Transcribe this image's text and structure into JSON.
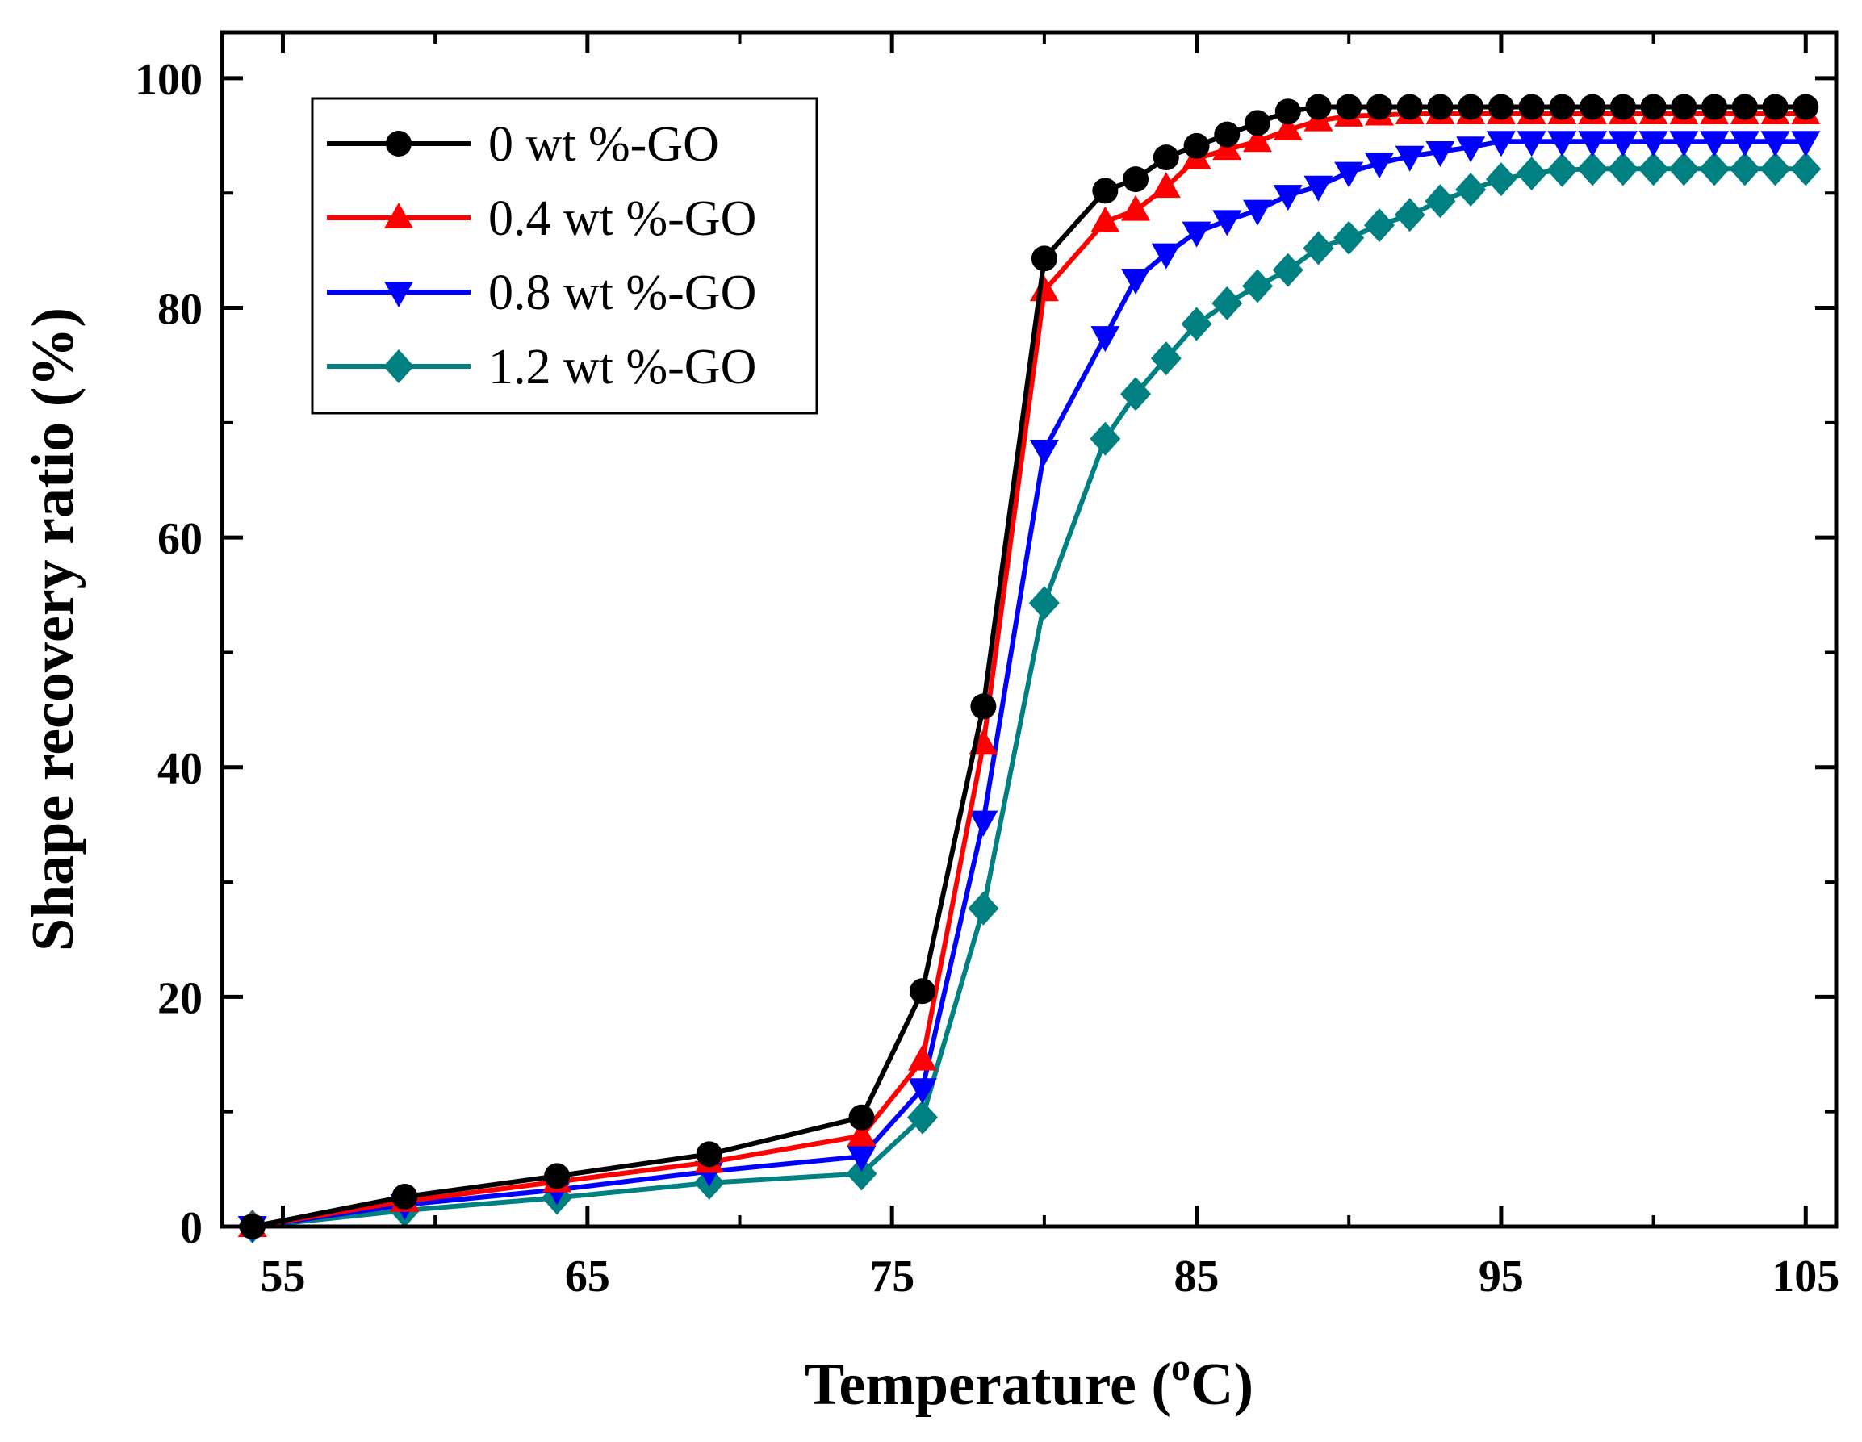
{
  "chart_data": {
    "type": "line",
    "title": "",
    "xlabel": "Temperature (",
    "xlabel_sup": "o",
    "xlabel_end": "C)",
    "ylabel": "Shape recovery ratio (%)",
    "xlim": [
      53,
      106
    ],
    "ylim": [
      0,
      104
    ],
    "xticks": [
      55,
      65,
      75,
      85,
      95,
      105
    ],
    "xtick_labels": [
      "55",
      "65",
      "75",
      "85",
      "95",
      "105"
    ],
    "yticks": [
      0,
      20,
      40,
      60,
      80,
      100
    ],
    "ytick_labels": [
      "0",
      "20",
      "40",
      "60",
      "80",
      "100"
    ],
    "legend_position": "top-left",
    "series": [
      {
        "name": "0 wt %-GO",
        "color": "#000000",
        "marker": "circle",
        "x": [
          54,
          59,
          64,
          69,
          74,
          76,
          78,
          80,
          82,
          83,
          84,
          85,
          86,
          87,
          88,
          89,
          90,
          91,
          92,
          93,
          94,
          95,
          96,
          97,
          98,
          99,
          100,
          101,
          102,
          103,
          104,
          105
        ],
        "y": [
          0,
          2.6,
          4.4,
          6.3,
          9.5,
          20.5,
          45.3,
          84.3,
          90.2,
          91.2,
          93.1,
          94.1,
          95.1,
          96.1,
          97.1,
          97.5,
          97.5,
          97.5,
          97.5,
          97.5,
          97.5,
          97.5,
          97.5,
          97.5,
          97.5,
          97.5,
          97.5,
          97.5,
          97.5,
          97.5,
          97.5,
          97.5
        ]
      },
      {
        "name": "0.4 wt %-GO",
        "color": "#ff0000",
        "marker": "triangle-up",
        "x": [
          54,
          59,
          64,
          69,
          74,
          76,
          78,
          80,
          82,
          83,
          84,
          85,
          86,
          87,
          88,
          89,
          90,
          91,
          92,
          93,
          94,
          95,
          96,
          97,
          98,
          99,
          100,
          101,
          102,
          103,
          104,
          105
        ],
        "y": [
          0,
          2.2,
          3.9,
          5.6,
          7.9,
          14.5,
          42,
          81.5,
          87.5,
          88.5,
          90.5,
          93,
          93.8,
          94.5,
          95.5,
          96.3,
          96.7,
          96.8,
          96.9,
          96.9,
          96.9,
          96.9,
          96.9,
          96.9,
          96.9,
          96.9,
          96.9,
          96.9,
          96.9,
          96.9,
          96.9,
          96.9
        ]
      },
      {
        "name": "0.8 wt %-GO",
        "color": "#0000ff",
        "marker": "triangle-down",
        "x": [
          54,
          59,
          64,
          69,
          74,
          76,
          78,
          80,
          82,
          83,
          84,
          85,
          86,
          87,
          88,
          89,
          90,
          91,
          92,
          93,
          94,
          95,
          96,
          97,
          98,
          99,
          100,
          101,
          102,
          103,
          104,
          105
        ],
        "y": [
          0,
          1.9,
          3.2,
          4.8,
          6.1,
          12,
          35.3,
          67.6,
          77.5,
          82.5,
          84.7,
          86.6,
          87.6,
          88.5,
          89.8,
          90.6,
          91.8,
          92.6,
          93.2,
          93.6,
          94,
          94.5,
          94.5,
          94.5,
          94.5,
          94.5,
          94.5,
          94.5,
          94.5,
          94.5,
          94.5,
          94.5
        ]
      },
      {
        "name": "1.2 wt %-GO",
        "color": "#008080",
        "marker": "diamond",
        "x": [
          54,
          59,
          64,
          69,
          74,
          76,
          78,
          80,
          82,
          83,
          84,
          85,
          86,
          87,
          88,
          89,
          90,
          91,
          92,
          93,
          94,
          95,
          96,
          97,
          98,
          99,
          100,
          101,
          102,
          103,
          104,
          105
        ],
        "y": [
          0,
          1.4,
          2.5,
          3.8,
          4.6,
          9.5,
          27.7,
          54.3,
          68.6,
          72.5,
          75.6,
          78.6,
          80.4,
          81.9,
          83.3,
          85.2,
          86.1,
          87.2,
          88.1,
          89.3,
          90.3,
          91.2,
          91.7,
          92,
          92.1,
          92.1,
          92.1,
          92.1,
          92.1,
          92.1,
          92.1,
          92.1
        ]
      }
    ]
  }
}
